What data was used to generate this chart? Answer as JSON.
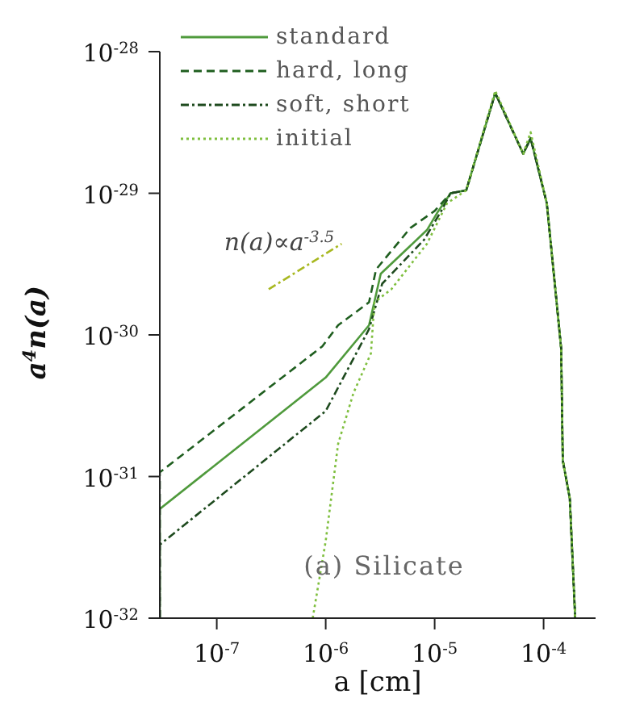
{
  "chart_data": {
    "type": "line",
    "xlabel": "a [cm]",
    "ylabel": "a$^{4}$n(a)",
    "log": "xy",
    "xlim": [
      3e-08,
      0.0003
    ],
    "ylim": [
      1e-32,
      1e-28
    ],
    "xticks": [
      {
        "value": 1e-07,
        "label": "10$^{-7}$"
      },
      {
        "value": 1e-06,
        "label": "10$^{-6}$"
      },
      {
        "value": 1e-05,
        "label": "10$^{-5}$"
      },
      {
        "value": 0.0001,
        "label": "10$^{-4}$"
      }
    ],
    "yticks": [
      {
        "value": 1e-32,
        "label": "10$^{-32}$"
      },
      {
        "value": 1e-31,
        "label": "10$^{-31}$"
      },
      {
        "value": 1e-30,
        "label": "10$^{-30}$"
      },
      {
        "value": 1e-29,
        "label": "10$^{-29}$"
      },
      {
        "value": 1e-28,
        "label": "10$^{-28}$"
      }
    ],
    "legend": "top left",
    "marker": "none",
    "annotations": [
      "(a) Silicate",
      "n(a)∝a$^{-3.5}$"
    ],
    "series": [
      {
        "name": "standard",
        "color": "#4f9a3c",
        "line_style": "solid",
        "x": [
          3e-08,
          3e-08,
          1e-06,
          2.5e-06,
          3.2e-06,
          8.5e-06,
          1.07e-05,
          1.4e-05,
          1.95e-05,
          3.6e-05,
          6.5e-05,
          7.6e-05,
          0.000107,
          0.000126,
          0.000145,
          0.00015,
          0.000174,
          0.000195
        ],
        "values": [
          1e-32,
          5.9e-32,
          5e-31,
          1.17e-30,
          2.7e-30,
          5.5e-30,
          7.4e-30,
          1e-29,
          1.05e-29,
          5.1e-29,
          1.9e-29,
          2.45e-29,
          8.5e-30,
          2.4e-30,
          8e-31,
          1.3e-31,
          7e-32,
          1e-32
        ]
      },
      {
        "name": "hard, long",
        "color": "#1f5e1f",
        "line_style": "dashed",
        "x": [
          3e-08,
          3e-08,
          9.3e-07,
          1.3e-06,
          2.5e-06,
          2.9e-06,
          6e-06,
          1e-05,
          1.4e-05,
          1.95e-05,
          3.6e-05,
          6.5e-05,
          7.6e-05,
          0.000107,
          0.000126,
          0.000145,
          0.00015,
          0.000174,
          0.000195
        ],
        "values": [
          1e-32,
          1.07e-31,
          8.3e-31,
          1.17e-30,
          1.7e-30,
          2.9e-30,
          5.7e-30,
          7.5e-30,
          1e-29,
          1.05e-29,
          5.1e-29,
          1.9e-29,
          2.45e-29,
          8.5e-30,
          2.4e-30,
          8e-31,
          1.3e-31,
          7e-32,
          1e-32
        ]
      },
      {
        "name": "soft, short",
        "color": "#1e4a1e",
        "line_style": "dashdot",
        "x": [
          3e-08,
          3e-08,
          1e-06,
          2.5e-06,
          3.3e-06,
          8e-06,
          1.15e-05,
          1.4e-05,
          1.95e-05,
          3.6e-05,
          6.5e-05,
          7.6e-05,
          0.000107,
          0.000126,
          0.000145,
          0.00015,
          0.000174,
          0.000195
        ],
        "values": [
          1e-32,
          3.3e-32,
          2.9e-31,
          1.1e-30,
          2.3e-30,
          4.7e-30,
          7.5e-30,
          1e-29,
          1.05e-29,
          5.1e-29,
          1.9e-29,
          2.45e-29,
          8.5e-30,
          2.4e-30,
          8e-31,
          1.3e-31,
          7e-32,
          1e-32
        ]
      },
      {
        "name": "initial",
        "color": "#7fbf3f",
        "line_style": "dotted",
        "x": [
          7.6e-07,
          1e-06,
          1.3e-06,
          1.8e-06,
          2.6e-06,
          2.8e-06,
          4e-06,
          8.5e-06,
          1.3e-05,
          1.95e-05,
          3.6e-05,
          6.5e-05,
          7.6e-05,
          0.000107,
          0.000126,
          0.000145,
          0.00015,
          0.000174,
          0.000195
        ],
        "values": [
          1e-32,
          3.5e-32,
          1.7e-31,
          3.9e-31,
          7.4e-31,
          1.7e-30,
          2.1e-30,
          4.4e-30,
          8.5e-30,
          1.05e-29,
          5.3e-29,
          1.9e-29,
          2.7e-29,
          8.5e-30,
          2.4e-30,
          8e-31,
          1.3e-31,
          7e-32,
          1e-32
        ]
      },
      {
        "type": "line",
        "color": "#a8b820",
        "line_style": "dashdot",
        "x": [
          3e-07,
          1.4e-06
        ],
        "values": [
          2.1e-30,
          4.4e-30
        ]
      }
    ]
  }
}
